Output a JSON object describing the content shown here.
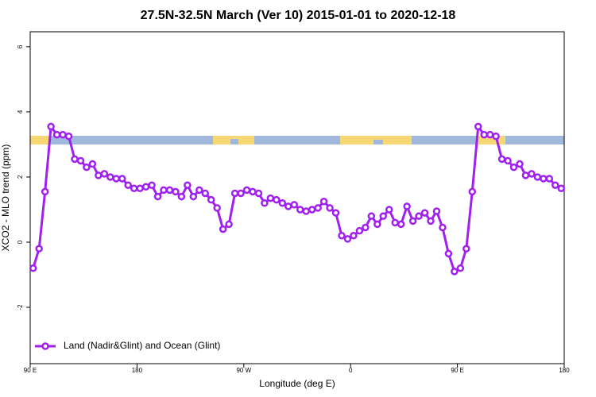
{
  "chart_data": {
    "type": "line",
    "title": "27.5N-32.5N March (Ver 10)   2015-01-01 to 2020-12-18",
    "xlabel": "Longitude (deg E)",
    "ylabel": "XCO2 - MLO trend (ppm)",
    "x": [
      92.5,
      97.5,
      102.5,
      107.5,
      112.5,
      117.5,
      122.5,
      127.5,
      132.5,
      137.5,
      142.5,
      147.5,
      152.5,
      157.5,
      162.5,
      167.5,
      172.5,
      177.5,
      182.5,
      187.5,
      192.5,
      197.5,
      202.5,
      207.5,
      212.5,
      217.5,
      222.5,
      227.5,
      232.5,
      237.5,
      242.5,
      247.5,
      252.5,
      257.5,
      262.5,
      267.5,
      272.5,
      277.5,
      282.5,
      287.5,
      292.5,
      297.5,
      302.5,
      307.5,
      312.5,
      317.5,
      322.5,
      327.5,
      332.5,
      337.5,
      342.5,
      347.5,
      352.5,
      357.5,
      362.5,
      367.5,
      372.5,
      377.5,
      382.5,
      387.5,
      392.5,
      397.5,
      402.5,
      407.5,
      412.5,
      417.5,
      422.5,
      427.5,
      432.5,
      437.5,
      442.5,
      447.5,
      452.5,
      457.5,
      462.5,
      467.5,
      472.5,
      477.5,
      482.5,
      487.5,
      492.5,
      497.5,
      502.5,
      507.5,
      512.5,
      517.5,
      522.5,
      527.5,
      532.5,
      537.5
    ],
    "series": [
      {
        "name": "Land (Nadir&Glint) and Ocean (Glint)",
        "color": "#a020f0",
        "values": [
          -0.8,
          -0.2,
          1.55,
          3.55,
          3.3,
          3.3,
          3.25,
          2.55,
          2.5,
          2.3,
          2.4,
          2.05,
          2.1,
          2.0,
          1.95,
          1.95,
          1.75,
          1.65,
          1.65,
          1.7,
          1.75,
          1.4,
          1.6,
          1.6,
          1.55,
          1.4,
          1.75,
          1.4,
          1.6,
          1.5,
          1.3,
          1.05,
          0.4,
          0.55,
          1.5,
          1.5,
          1.6,
          1.55,
          1.5,
          1.2,
          1.35,
          1.3,
          1.2,
          1.1,
          1.15,
          1.0,
          0.95,
          1.0,
          1.05,
          1.25,
          1.05,
          0.9,
          0.2,
          0.1,
          0.2,
          0.35,
          0.45,
          0.8,
          0.55,
          0.8,
          1.0,
          0.6,
          0.55,
          1.1,
          0.65,
          0.8,
          0.9,
          0.65,
          0.95,
          0.45,
          -0.35,
          -0.9,
          -0.8,
          -0.2,
          1.55,
          3.55,
          3.3,
          3.3,
          3.25,
          2.55,
          2.5,
          2.3,
          2.4,
          2.05,
          2.1,
          2.0,
          1.95,
          1.95,
          1.75,
          1.65
        ]
      }
    ],
    "xlim": [
      90,
      540
    ],
    "xticks": [
      {
        "value": 90,
        "label": "90 E"
      },
      180,
      {
        "value": 270,
        "label": "90 W"
      },
      {
        "value": 360,
        "label": "0"
      },
      {
        "value": 450,
        "label": "90 E"
      },
      {
        "value": 540,
        "label": "180"
      }
    ],
    "ylim": [
      -3.73,
      6.46
    ],
    "yticks": [
      -2,
      0,
      2,
      4,
      6
    ],
    "legend": "bottom-left"
  }
}
